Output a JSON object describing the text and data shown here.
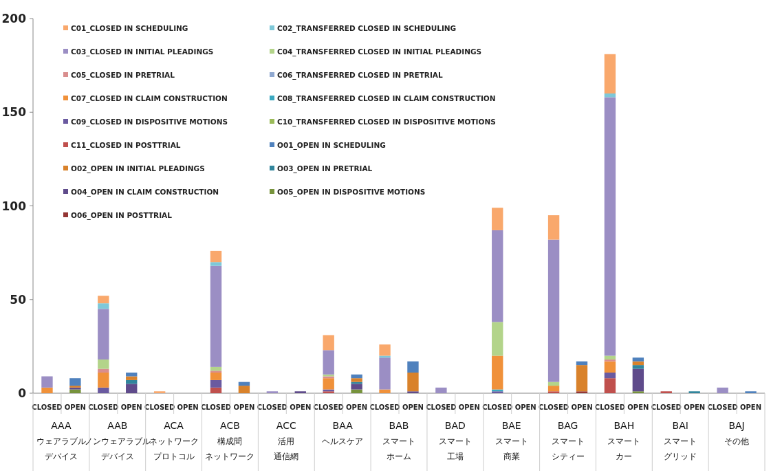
{
  "chart_data": {
    "type": "bar",
    "stacked": true,
    "ylim": [
      0,
      200
    ],
    "yticks": [
      0,
      50,
      100,
      150,
      200
    ],
    "grid": false,
    "legend": "top left",
    "categories": [
      "CLOSED",
      "OPEN",
      "CLOSED",
      "OPEN",
      "CLOSED",
      "OPEN",
      "CLOSED",
      "OPEN",
      "CLOSED",
      "OPEN",
      "CLOSED",
      "OPEN",
      "CLOSED",
      "OPEN",
      "CLOSED",
      "OPEN",
      "CLOSED",
      "OPEN",
      "CLOSED",
      "OPEN",
      "CLOSED",
      "OPEN",
      "CLOSED",
      "OPEN",
      "CLOSED",
      "OPEN"
    ],
    "annotations": [
      "AAA",
      "ウェアラブル",
      "デバイス",
      "AAB",
      "ノンウェアラブル",
      "デバイス",
      "ACA",
      "ネットワーク",
      "プロトコル",
      "ACB",
      "構成間",
      "ネットワーク",
      "ACC",
      "活用",
      "通信網",
      "BAA",
      "ヘルスケア",
      "BAB",
      "スマート",
      "ホーム",
      "BAD",
      "スマート",
      "工場",
      "BAE",
      "スマート",
      "商業",
      "BAG",
      "スマート",
      "シティー",
      "BAH",
      "スマート",
      "カー",
      "BAI",
      "スマート",
      "グリッド",
      "BAJ",
      "その他"
    ],
    "series": [
      {
        "name": "O06_OPEN IN POSTTRIAL",
        "color": "#943634",
        "values": [
          null,
          null,
          null,
          null,
          null,
          null,
          null,
          null,
          null,
          null,
          null,
          null,
          null,
          null,
          null,
          null,
          null,
          null,
          null,
          1,
          null,
          null,
          null,
          null,
          null,
          null
        ]
      },
      {
        "name": "O05_OPEN IN DISPOSITIVE MOTIONS",
        "color": "#77933c",
        "values": [
          null,
          2,
          null,
          null,
          null,
          null,
          null,
          null,
          null,
          null,
          null,
          2,
          null,
          null,
          null,
          null,
          null,
          null,
          null,
          null,
          null,
          1,
          null,
          null,
          null,
          null
        ]
      },
      {
        "name": "O04_OPEN IN CLAIM CONSTRUCTION",
        "color": "#5f4b8b",
        "values": [
          null,
          1,
          null,
          5,
          null,
          null,
          null,
          null,
          null,
          1,
          null,
          3,
          null,
          1,
          null,
          null,
          null,
          null,
          null,
          null,
          null,
          12,
          null,
          null,
          null,
          null
        ]
      },
      {
        "name": "O03_OPEN IN PRETRIAL",
        "color": "#31859c",
        "values": [
          null,
          null,
          null,
          2,
          null,
          null,
          null,
          null,
          null,
          null,
          null,
          1,
          null,
          null,
          null,
          null,
          null,
          null,
          null,
          null,
          null,
          2,
          null,
          1,
          null,
          null
        ]
      },
      {
        "name": "O02_OPEN IN INITIAL PLEADINGS",
        "color": "#d9822b",
        "values": [
          null,
          1,
          null,
          2,
          null,
          null,
          null,
          4,
          null,
          null,
          null,
          2,
          null,
          10,
          null,
          null,
          null,
          null,
          null,
          14,
          null,
          2,
          null,
          null,
          null,
          null
        ]
      },
      {
        "name": "O01_OPEN IN SCHEDULING",
        "color": "#4f81bd",
        "values": [
          null,
          4,
          null,
          2,
          null,
          null,
          null,
          2,
          null,
          null,
          null,
          2,
          null,
          6,
          null,
          null,
          null,
          null,
          null,
          2,
          null,
          2,
          null,
          null,
          null,
          1
        ]
      },
      {
        "name": "C11_CLOSED IN POSTTRIAL",
        "color": "#c0504d",
        "values": [
          null,
          null,
          null,
          null,
          null,
          null,
          3,
          null,
          null,
          null,
          1,
          null,
          null,
          null,
          null,
          null,
          null,
          null,
          1,
          null,
          8,
          null,
          1,
          null,
          null,
          null
        ]
      },
      {
        "name": "C10_TRANSFERRED CLOSED IN DISPOSITIVE MOTIONS",
        "color": "#9bbb59",
        "values": [
          null,
          null,
          null,
          null,
          null,
          null,
          null,
          null,
          null,
          null,
          null,
          null,
          null,
          null,
          null,
          null,
          null,
          null,
          null,
          null,
          null,
          null,
          null,
          null,
          null,
          null
        ]
      },
      {
        "name": "C09_CLOSED IN DISPOSITIVE MOTIONS",
        "color": "#6a5aa0",
        "values": [
          null,
          null,
          3,
          null,
          null,
          null,
          4,
          null,
          null,
          null,
          1,
          null,
          null,
          null,
          null,
          null,
          1,
          null,
          null,
          null,
          3,
          null,
          null,
          null,
          null,
          null
        ]
      },
      {
        "name": "C08_TRANSFERRED CLOSED IN CLAIM CONSTRUCTION",
        "color": "#3aa8c0",
        "values": [
          null,
          null,
          null,
          null,
          null,
          null,
          null,
          null,
          null,
          null,
          null,
          null,
          null,
          null,
          null,
          null,
          1,
          null,
          null,
          null,
          null,
          null,
          null,
          null,
          null,
          null
        ]
      },
      {
        "name": "C07_CLOSED IN CLAIM CONSTRUCTION",
        "color": "#f0913a",
        "values": [
          3,
          null,
          8,
          null,
          null,
          null,
          4,
          null,
          null,
          null,
          6,
          null,
          2,
          null,
          null,
          null,
          18,
          null,
          3,
          null,
          6,
          null,
          null,
          null,
          null,
          null
        ]
      },
      {
        "name": "C06_TRANSFERRED CLOSED IN PRETRIAL",
        "color": "#8fa8d0",
        "values": [
          null,
          null,
          null,
          null,
          null,
          null,
          null,
          null,
          null,
          null,
          null,
          null,
          null,
          null,
          null,
          null,
          null,
          null,
          null,
          null,
          null,
          null,
          null,
          null,
          null,
          null
        ]
      },
      {
        "name": "C05_CLOSED IN PRETRIAL",
        "color": "#d98e8e",
        "values": [
          null,
          null,
          2,
          null,
          null,
          null,
          1,
          null,
          null,
          null,
          1,
          null,
          null,
          null,
          null,
          null,
          null,
          null,
          null,
          null,
          1,
          null,
          null,
          null,
          null,
          null
        ]
      },
      {
        "name": "C04_TRANSFERRED CLOSED IN INITIAL PLEADINGS",
        "color": "#b3d48a",
        "values": [
          null,
          null,
          5,
          null,
          null,
          null,
          2,
          null,
          null,
          null,
          1,
          null,
          null,
          null,
          null,
          null,
          18,
          null,
          2,
          null,
          2,
          null,
          null,
          null,
          null,
          null
        ]
      },
      {
        "name": "C03_CLOSED IN INITIAL PLEADINGS",
        "color": "#9b8ec4",
        "values": [
          6,
          null,
          27,
          null,
          null,
          null,
          54,
          null,
          1,
          null,
          13,
          null,
          17,
          null,
          3,
          null,
          49,
          null,
          76,
          null,
          138,
          null,
          null,
          null,
          3,
          null
        ]
      },
      {
        "name": "C02_TRANSFERRED CLOSED IN SCHEDULING",
        "color": "#7ec8d8",
        "values": [
          null,
          null,
          3,
          null,
          null,
          null,
          2,
          null,
          null,
          null,
          null,
          null,
          1,
          null,
          null,
          null,
          null,
          null,
          null,
          null,
          2,
          null,
          null,
          null,
          null,
          null
        ]
      },
      {
        "name": "C01_CLOSED IN SCHEDULING",
        "color": "#f9a86c",
        "values": [
          null,
          null,
          4,
          null,
          1,
          null,
          6,
          null,
          null,
          null,
          8,
          null,
          6,
          null,
          null,
          null,
          12,
          null,
          13,
          null,
          21,
          null,
          null,
          null,
          null,
          null
        ]
      }
    ]
  }
}
